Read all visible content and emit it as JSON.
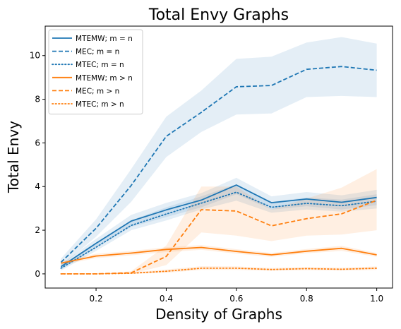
{
  "chart_data": {
    "type": "line",
    "title": "Total Envy Graphs",
    "xlabel": "Density of Graphs",
    "ylabel": "Total Envy",
    "xlim": [
      0.055,
      1.045
    ],
    "ylim": [
      -0.65,
      11.35
    ],
    "xticks": [
      0.2,
      0.4,
      0.6,
      0.8,
      1.0
    ],
    "xtick_labels": [
      "0.2",
      "0.4",
      "0.6",
      "0.8",
      "1.0"
    ],
    "yticks": [
      0,
      2,
      4,
      6,
      8,
      10
    ],
    "ytick_labels": [
      "0",
      "2",
      "4",
      "6",
      "8",
      "10"
    ],
    "grid": false,
    "legend_position": "top-left",
    "x": [
      0.1,
      0.2,
      0.3,
      0.4,
      0.5,
      0.6,
      0.7,
      0.8,
      0.9,
      1.0
    ],
    "series": [
      {
        "name": "MTEMW; m = n",
        "color": "#1f77b4",
        "style": "solid",
        "values": [
          0.33,
          1.4,
          2.42,
          2.93,
          3.38,
          4.07,
          3.26,
          3.43,
          3.28,
          3.5
        ],
        "band_lower": [
          0.2,
          1.2,
          2.15,
          2.6,
          3.05,
          3.65,
          2.95,
          3.1,
          2.95,
          3.15
        ],
        "band_upper": [
          0.45,
          1.6,
          2.7,
          3.25,
          3.7,
          4.4,
          3.55,
          3.75,
          3.6,
          3.85
        ]
      },
      {
        "name": "MEC; m = n",
        "color": "#1f77b4",
        "style": "dashed",
        "values": [
          0.53,
          2.09,
          4.05,
          6.3,
          7.4,
          8.57,
          8.63,
          9.37,
          9.5,
          9.33
        ],
        "band_lower": [
          0.35,
          1.7,
          3.3,
          5.35,
          6.5,
          7.3,
          7.35,
          8.1,
          8.15,
          8.1
        ],
        "band_upper": [
          0.7,
          2.5,
          4.8,
          7.2,
          8.4,
          9.85,
          9.95,
          10.6,
          10.85,
          10.55
        ]
      },
      {
        "name": "MTEC; m = n",
        "color": "#1f77b4",
        "style": "dotted",
        "values": [
          0.26,
          1.22,
          2.22,
          2.74,
          3.24,
          3.74,
          3.05,
          3.23,
          3.12,
          3.33
        ],
        "band_lower": [
          0.15,
          1.05,
          2.0,
          2.45,
          2.95,
          3.35,
          2.8,
          2.95,
          2.85,
          3.0
        ],
        "band_upper": [
          0.38,
          1.4,
          2.45,
          3.05,
          3.55,
          4.1,
          3.3,
          3.5,
          3.4,
          3.65
        ]
      },
      {
        "name": "MTEMW; m > n",
        "color": "#ff7f0e",
        "style": "solid",
        "values": [
          0.49,
          0.82,
          0.95,
          1.12,
          1.21,
          1.03,
          0.87,
          1.04,
          1.17,
          0.87
        ],
        "band_lower": [
          0.4,
          0.72,
          0.85,
          1.0,
          1.1,
          0.93,
          0.78,
          0.94,
          1.05,
          0.78
        ],
        "band_upper": [
          0.58,
          0.92,
          1.05,
          1.22,
          1.32,
          1.13,
          0.96,
          1.14,
          1.28,
          0.96
        ]
      },
      {
        "name": "MEC; m > n",
        "color": "#ff7f0e",
        "style": "dashed",
        "values": [
          0.0,
          0.0,
          0.05,
          0.8,
          2.94,
          2.88,
          2.2,
          2.53,
          2.75,
          3.37
        ],
        "band_lower": [
          0.0,
          0.0,
          0.0,
          0.4,
          1.9,
          1.75,
          1.5,
          1.75,
          1.8,
          2.0
        ],
        "band_upper": [
          0.0,
          0.0,
          0.12,
          1.3,
          4.0,
          4.0,
          2.95,
          3.45,
          3.95,
          4.8
        ]
      },
      {
        "name": "MTEC; m > n",
        "color": "#ff7f0e",
        "style": "dotted",
        "values": [
          0.0,
          0.0,
          0.03,
          0.12,
          0.26,
          0.26,
          0.2,
          0.24,
          0.21,
          0.26
        ],
        "band_lower": [
          0.0,
          0.0,
          0.0,
          0.05,
          0.18,
          0.18,
          0.14,
          0.17,
          0.15,
          0.18
        ],
        "band_upper": [
          0.0,
          0.0,
          0.07,
          0.2,
          0.35,
          0.34,
          0.27,
          0.31,
          0.28,
          0.34
        ]
      }
    ]
  }
}
